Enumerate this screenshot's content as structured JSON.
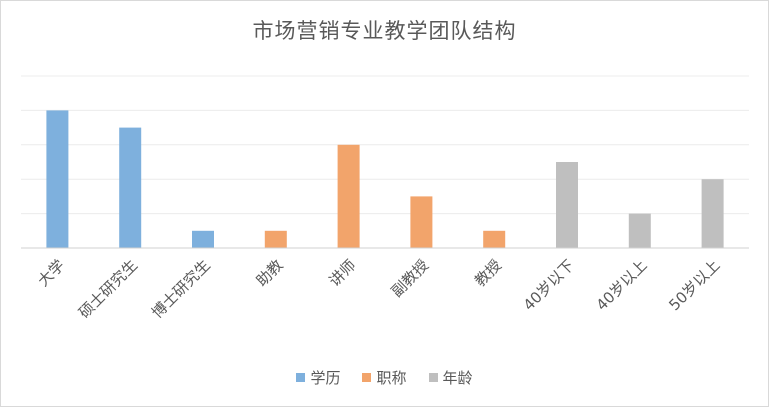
{
  "chart_data": {
    "type": "bar",
    "title": "市场营销专业教学团队结构",
    "categories": [
      "大学",
      "硕士研究生",
      "博士研究生",
      "助教",
      "讲师",
      "副教授",
      "教授",
      "40岁以下",
      "40岁以上",
      "50岁以上"
    ],
    "series": [
      {
        "name": "学历",
        "color": "#7eb0dd",
        "values": [
          8,
          7,
          1,
          null,
          null,
          null,
          null,
          null,
          null,
          null
        ]
      },
      {
        "name": "职称",
        "color": "#f2a46b",
        "values": [
          null,
          null,
          null,
          1,
          6,
          3,
          1,
          null,
          null,
          null
        ]
      },
      {
        "name": "年龄",
        "color": "#bfbfbf",
        "values": [
          null,
          null,
          null,
          null,
          null,
          null,
          null,
          5,
          2,
          4
        ]
      }
    ],
    "ylim": [
      0,
      10
    ],
    "grid": true,
    "legend": "bottom"
  }
}
